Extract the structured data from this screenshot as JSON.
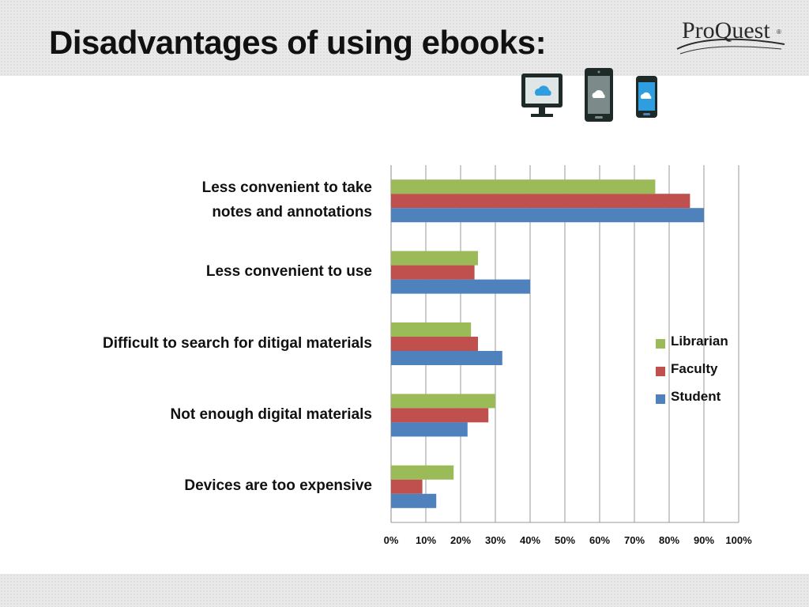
{
  "slide": {
    "title": "Disadvantages of using ebooks:",
    "logo_text": "ProQuest",
    "logo_tm": "®",
    "device_icons": [
      "desktop-monitor-icon",
      "tablet-icon",
      "smartphone-icon"
    ],
    "colors": {
      "header_band": "#e9e9e9",
      "device_dark": "#1e2a28",
      "cloud_blue": "#2f9ee0"
    }
  },
  "chart_data": {
    "type": "bar",
    "orientation": "horizontal",
    "categories": [
      "Less convenient to take notes and annotations",
      "Less convenient to use",
      "Difficult to search for ditigal materials",
      "Not enough digital materials",
      "Devices are too expensive"
    ],
    "category_label_lines": [
      [
        "Less convenient to take",
        "notes and annotations"
      ],
      [
        "Less convenient to use"
      ],
      [
        "Difficult to search for ditigal materials"
      ],
      [
        "Not enough digital materials"
      ],
      [
        "Devices are too expensive"
      ]
    ],
    "series": [
      {
        "name": "Librarian",
        "color": "#9bbb59",
        "values": [
          76,
          25,
          23,
          30,
          18
        ]
      },
      {
        "name": "Faculty",
        "color": "#c0504d",
        "values": [
          86,
          24,
          25,
          28,
          9
        ]
      },
      {
        "name": "Student",
        "color": "#4f81bd",
        "values": [
          90,
          40,
          32,
          22,
          13
        ]
      }
    ],
    "x_ticks": [
      "0%",
      "10%",
      "20%",
      "30%",
      "40%",
      "50%",
      "60%",
      "70%",
      "80%",
      "90%",
      "100%"
    ],
    "xlim": [
      0,
      100
    ],
    "unit": "%",
    "grid": "vertical",
    "legend_position": "right"
  }
}
